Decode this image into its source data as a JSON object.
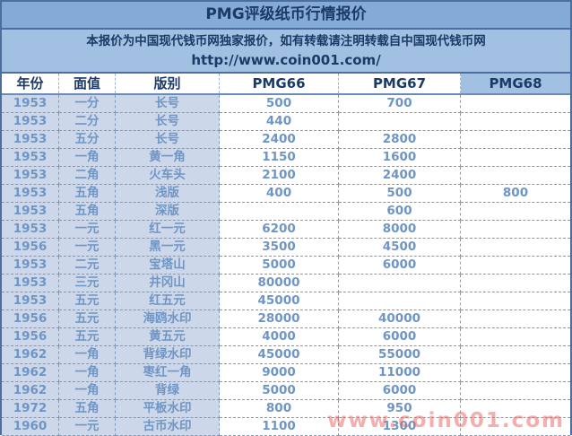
{
  "title": "PMG评级纸币行情报价",
  "notice": {
    "line1": "本报价为中国现代钱币网独家报价，如有转载请注明转载自中国现代钱币网",
    "line2": "http://www.coin001.com/"
  },
  "watermark": "www.coin001.com",
  "colors": {
    "title_bg": "#84abd8",
    "notice_bg": "#a2c1e2",
    "heading_text": "#1b3a66",
    "data_text": "#6e95c5",
    "label_cell_bg": "#ccd8ea",
    "value_cell_bg": "#ffffff",
    "outer_border": "#4d6f9f",
    "grid_dashed": "#8099ba",
    "watermark_red": "#e85d5d"
  },
  "table": {
    "headers": [
      "年份",
      "面值",
      "版别",
      "PMG66",
      "PMG67",
      "PMG68"
    ],
    "header_keys": [
      "year",
      "face-value",
      "version",
      "pmg66",
      "pmg67",
      "pmg68"
    ],
    "rows": [
      [
        "1953",
        "一分",
        "长号",
        "500",
        "700",
        ""
      ],
      [
        "1953",
        "二分",
        "长号",
        "440",
        "",
        ""
      ],
      [
        "1953",
        "五分",
        "长号",
        "2400",
        "2800",
        ""
      ],
      [
        "1953",
        "一角",
        "黄一角",
        "1150",
        "1600",
        ""
      ],
      [
        "1953",
        "二角",
        "火车头",
        "2100",
        "2400",
        ""
      ],
      [
        "1953",
        "五角",
        "浅版",
        "400",
        "500",
        "800"
      ],
      [
        "1953",
        "五角",
        "深版",
        "",
        "600",
        ""
      ],
      [
        "1953",
        "一元",
        "红一元",
        "6200",
        "8000",
        ""
      ],
      [
        "1956",
        "一元",
        "黑一元",
        "3500",
        "4500",
        ""
      ],
      [
        "1953",
        "二元",
        "宝塔山",
        "5000",
        "6000",
        ""
      ],
      [
        "1953",
        "三元",
        "井冈山",
        "80000",
        "",
        ""
      ],
      [
        "1953",
        "五元",
        "红五元",
        "45000",
        "",
        ""
      ],
      [
        "1956",
        "五元",
        "海鸥水印",
        "28000",
        "40000",
        ""
      ],
      [
        "1956",
        "五元",
        "黄五元",
        "4000",
        "6000",
        ""
      ],
      [
        "1962",
        "一角",
        "背绿水印",
        "45000",
        "55000",
        ""
      ],
      [
        "1962",
        "一角",
        "枣红一角",
        "9000",
        "11000",
        ""
      ],
      [
        "1962",
        "一角",
        "背绿",
        "5000",
        "6000",
        ""
      ],
      [
        "1972",
        "五角",
        "平板水印",
        "800",
        "950",
        ""
      ],
      [
        "1960",
        "一元",
        "古币水印",
        "1100",
        "1300",
        ""
      ]
    ]
  }
}
